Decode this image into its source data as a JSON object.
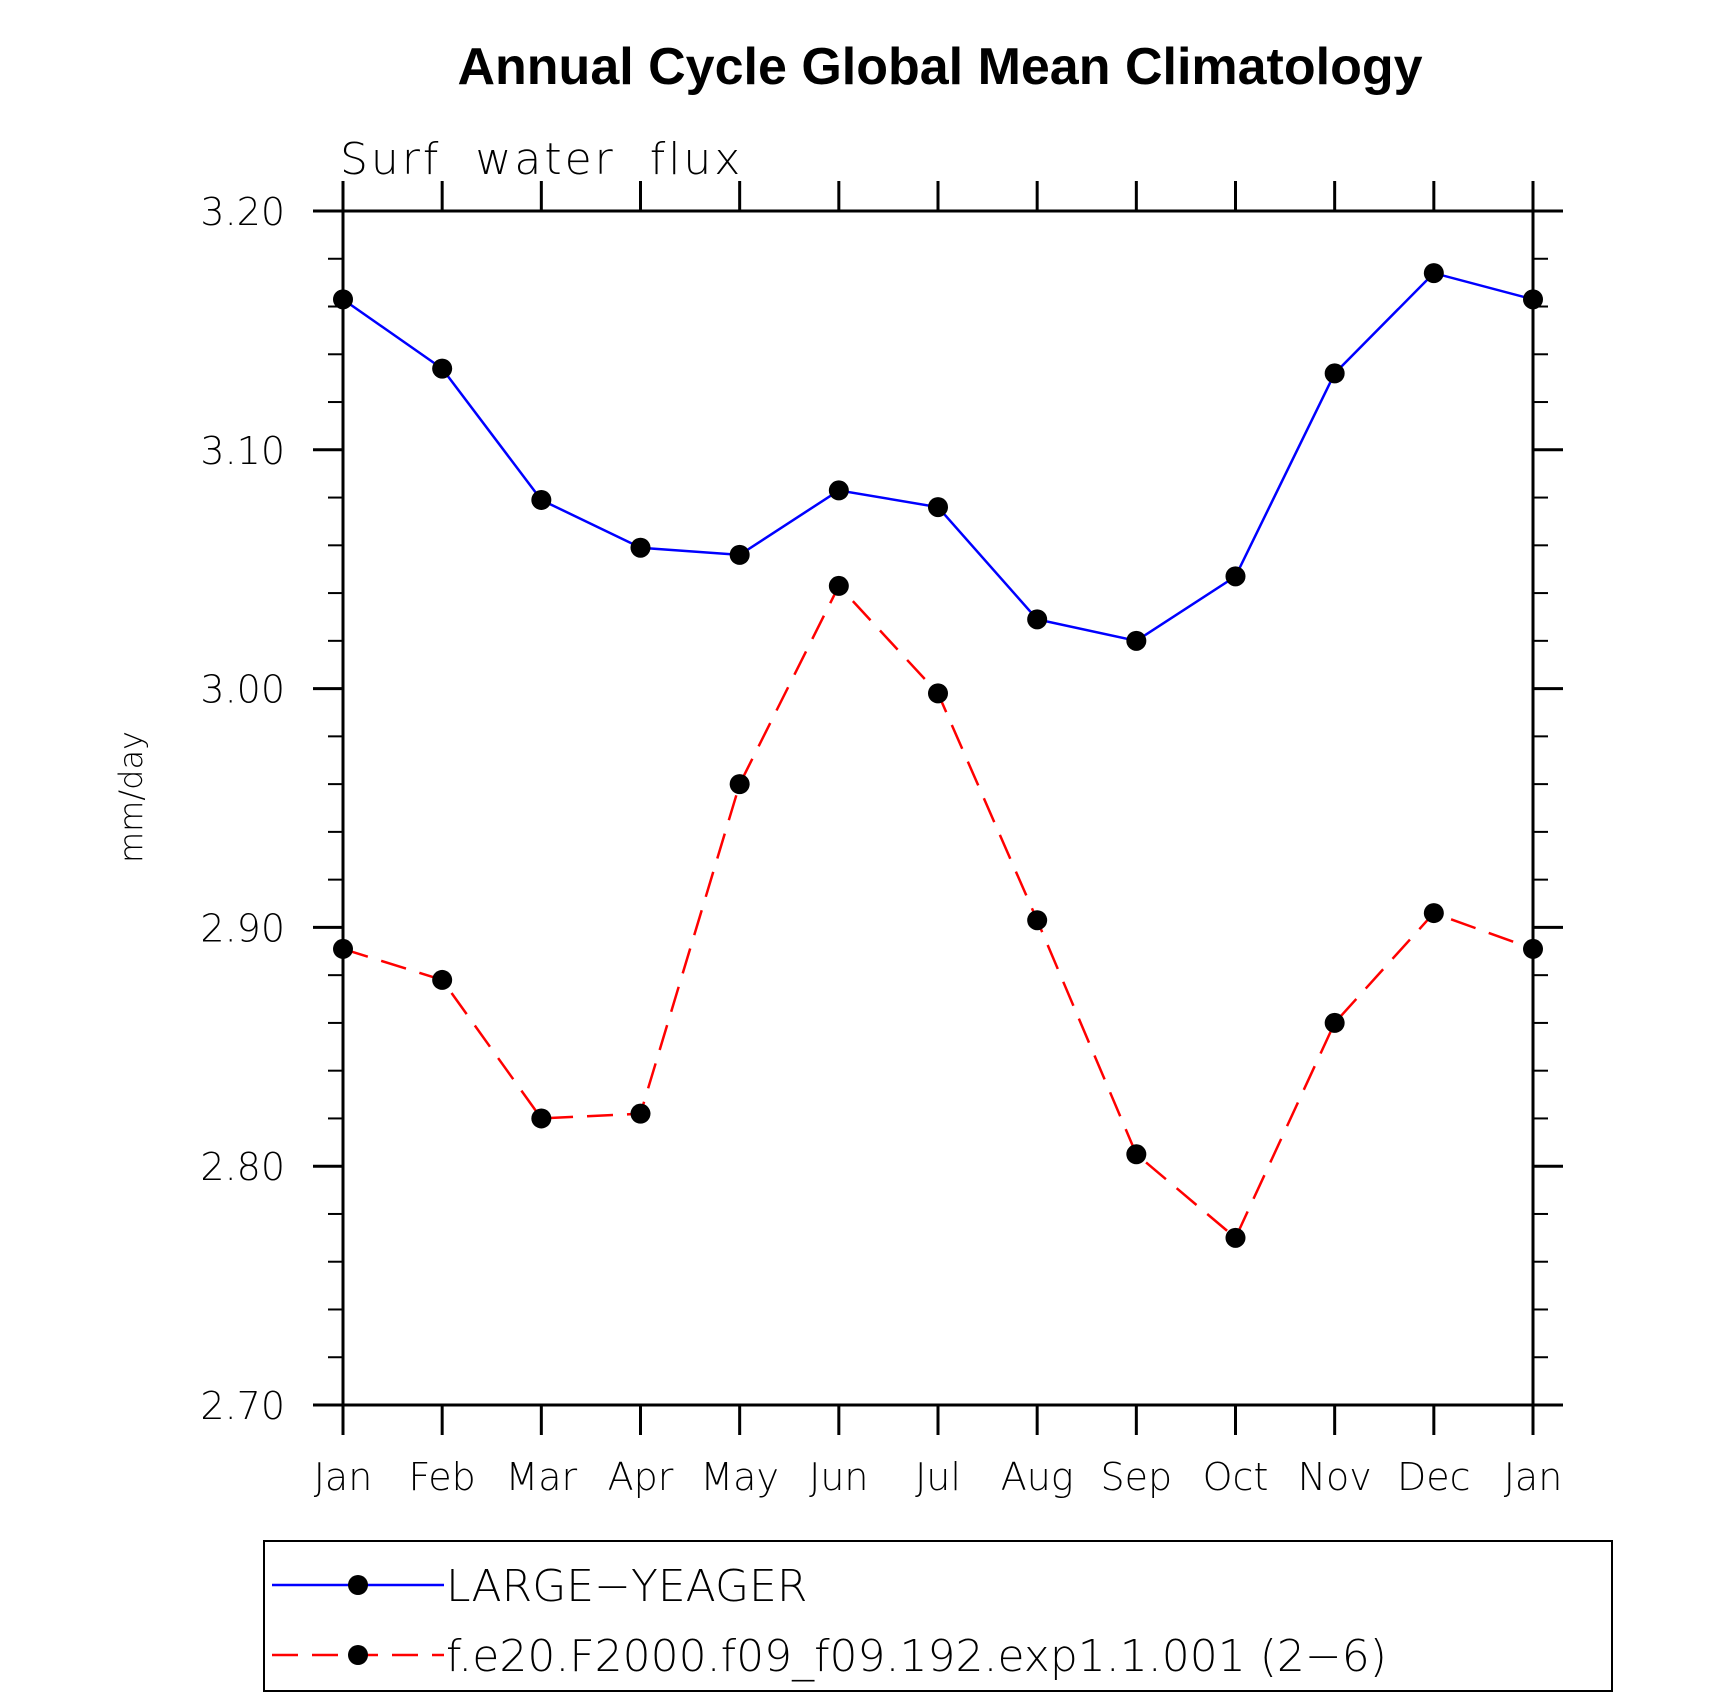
{
  "chart_data": {
    "type": "line",
    "title": "Annual Cycle Global Mean Climatology",
    "subtitle": "Surf  water  flux",
    "xlabel": "",
    "ylabel": "mm/day",
    "categories": [
      "Jan",
      "Feb",
      "Mar",
      "Apr",
      "May",
      "Jun",
      "Jul",
      "Aug",
      "Sep",
      "Oct",
      "Nov",
      "Dec",
      "Jan"
    ],
    "ylim": [
      2.7,
      3.2
    ],
    "yticks": [
      "2.70",
      "2.80",
      "2.90",
      "3.00",
      "3.10",
      "3.20"
    ],
    "grid": false,
    "legend_position": "bottom",
    "series": [
      {
        "name": "LARGE−YEAGER",
        "color": "#0000ff",
        "line_style": "solid",
        "marker": "filled-circle",
        "values": [
          3.163,
          3.134,
          3.079,
          3.059,
          3.056,
          3.083,
          3.076,
          3.029,
          3.02,
          3.047,
          3.132,
          3.174,
          3.163
        ]
      },
      {
        "name": "f.e20.F2000.f09_f09.192.exp1.1.001 (2−6)",
        "color": "#ff0000",
        "line_style": "dashed",
        "marker": "filled-circle",
        "values": [
          2.891,
          2.878,
          2.82,
          2.822,
          2.96,
          3.043,
          2.998,
          2.903,
          2.805,
          2.77,
          2.86,
          2.906,
          2.891
        ]
      }
    ]
  }
}
